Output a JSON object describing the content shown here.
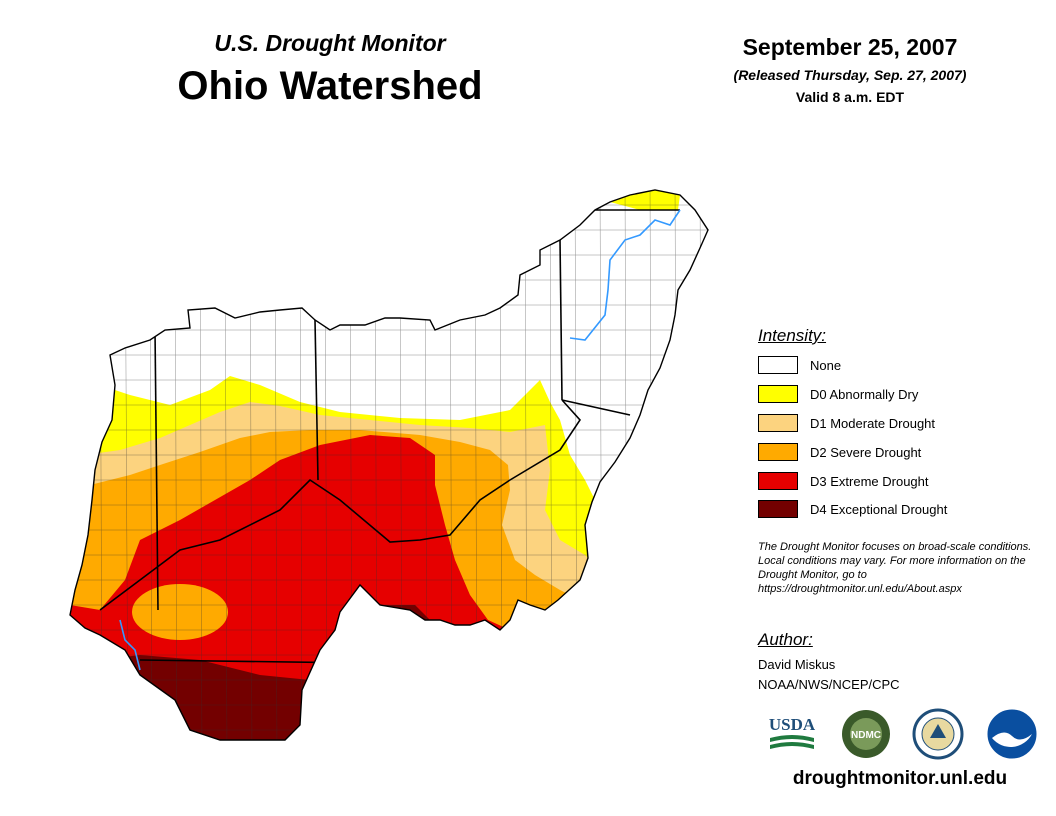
{
  "header": {
    "subtitle": "U.S. Drought Monitor",
    "title": "Ohio Watershed",
    "date": "September 25, 2007",
    "released": "(Released Thursday, Sep. 27, 2007)",
    "valid": "Valid 8 a.m. EDT"
  },
  "legend": {
    "title": "Intensity:",
    "items": [
      {
        "label": "None",
        "color": "#ffffff"
      },
      {
        "label": "D0 Abnormally Dry",
        "color": "#ffff00"
      },
      {
        "label": "D1 Moderate Drought",
        "color": "#fcd37f"
      },
      {
        "label": "D2 Severe Drought",
        "color": "#ffaa00"
      },
      {
        "label": "D3 Extreme Drought",
        "color": "#e60000"
      },
      {
        "label": "D4 Exceptional Drought",
        "color": "#730000"
      }
    ]
  },
  "note": "The Drought Monitor focuses on broad-scale conditions. Local conditions may vary. For more information on the Drought Monitor, go to https://droughtmonitor.unl.edu/About.aspx",
  "author": {
    "title": "Author:",
    "name": "David Miskus",
    "org": "NOAA/NWS/NCEP/CPC"
  },
  "logos": {
    "usda": "USDA",
    "ndmc": "NDMC",
    "doc": "DOC",
    "noaa": "NOAA"
  },
  "footer_url": "droughtmonitor.unl.edu"
}
